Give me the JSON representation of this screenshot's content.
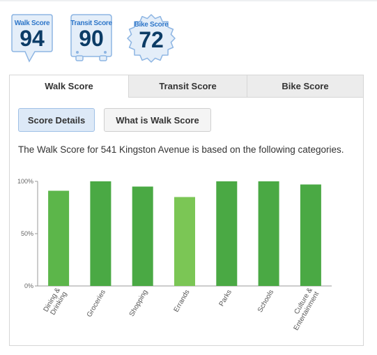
{
  "badges": [
    {
      "label": "Walk Score",
      "value": "94",
      "shape": "speech-bubble"
    },
    {
      "label": "Transit Score",
      "value": "90",
      "shape": "bus"
    },
    {
      "label": "Bike Score",
      "value": "72",
      "shape": "gear"
    }
  ],
  "colors": {
    "badge_fill": "#e4eef9",
    "badge_border": "#8db5e3",
    "badge_label": "#2f77c9",
    "badge_value": "#0c3c66",
    "bar_dark": "#4aa944",
    "bar_light": "#7bc655"
  },
  "tabs": [
    {
      "label": "Walk Score",
      "active": true
    },
    {
      "label": "Transit Score",
      "active": false
    },
    {
      "label": "Bike Score",
      "active": false
    }
  ],
  "buttons": {
    "details": "Score Details",
    "what": "What is Walk Score"
  },
  "description": "The Walk Score for 541 Kingston Avenue is based on the following categories.",
  "chart_data": {
    "type": "bar",
    "categories": [
      [
        "Dining &",
        "Drinking"
      ],
      [
        "Groceries"
      ],
      [
        "Shopping"
      ],
      [
        "Errands"
      ],
      [
        "Parks"
      ],
      [
        "Schools"
      ],
      [
        "Culture &",
        "Entertainment"
      ]
    ],
    "values": [
      91,
      100,
      95,
      85,
      100,
      100,
      97
    ],
    "bar_shades": [
      "medium",
      "dark",
      "dark",
      "light",
      "dark",
      "dark",
      "dark"
    ],
    "yticks": [
      "100%",
      "50%",
      "0%"
    ],
    "ylim": [
      0,
      100
    ],
    "grid": false,
    "legend": "none"
  }
}
